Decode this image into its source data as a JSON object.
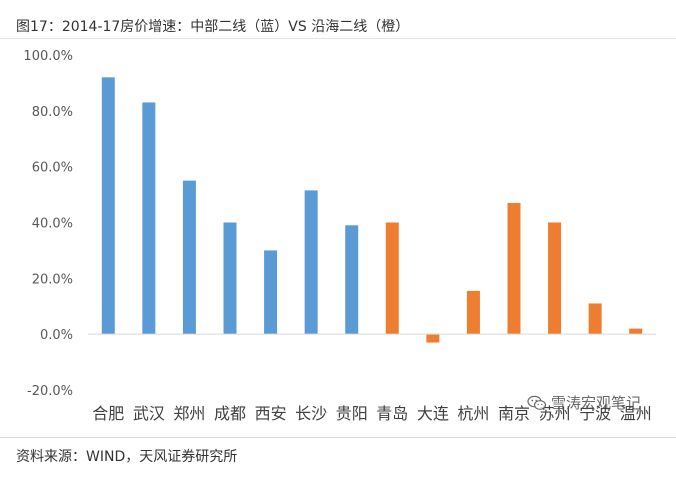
{
  "header": {
    "title": "图17：2014-17房价增速：中部二线（蓝）VS 沿海二线（橙）"
  },
  "footer": {
    "source": "资料来源：WIND，天风证券研究所"
  },
  "watermark": {
    "text": "雪涛宏观笔记",
    "icon": "wechat-icon"
  },
  "colors": {
    "central": "#5B9BD5",
    "coastal": "#ED7D31",
    "axis": "#d9d9d9",
    "tick_text": "#595959"
  },
  "chart_data": {
    "type": "bar",
    "title": "",
    "xlabel": "",
    "ylabel": "",
    "ylim": [
      -20,
      100
    ],
    "y_ticks": [
      -20,
      0,
      20,
      40,
      60,
      80,
      100
    ],
    "y_tick_labels": [
      "-20.0%",
      "0.0%",
      "20.0%",
      "40.0%",
      "60.0%",
      "80.0%",
      "100.0%"
    ],
    "grid": false,
    "legend": "none",
    "categories": [
      "合肥",
      "武汉",
      "郑州",
      "成都",
      "西安",
      "长沙",
      "贵阳",
      "青岛",
      "大连",
      "杭州",
      "南京",
      "苏州",
      "宁波",
      "温州"
    ],
    "values": [
      92,
      83,
      55,
      40,
      30,
      51.5,
      39,
      40,
      -3,
      15.5,
      47,
      40,
      11,
      2
    ],
    "groups": [
      "central",
      "central",
      "central",
      "central",
      "central",
      "central",
      "central",
      "coastal",
      "coastal",
      "coastal",
      "coastal",
      "coastal",
      "coastal",
      "coastal"
    ]
  }
}
